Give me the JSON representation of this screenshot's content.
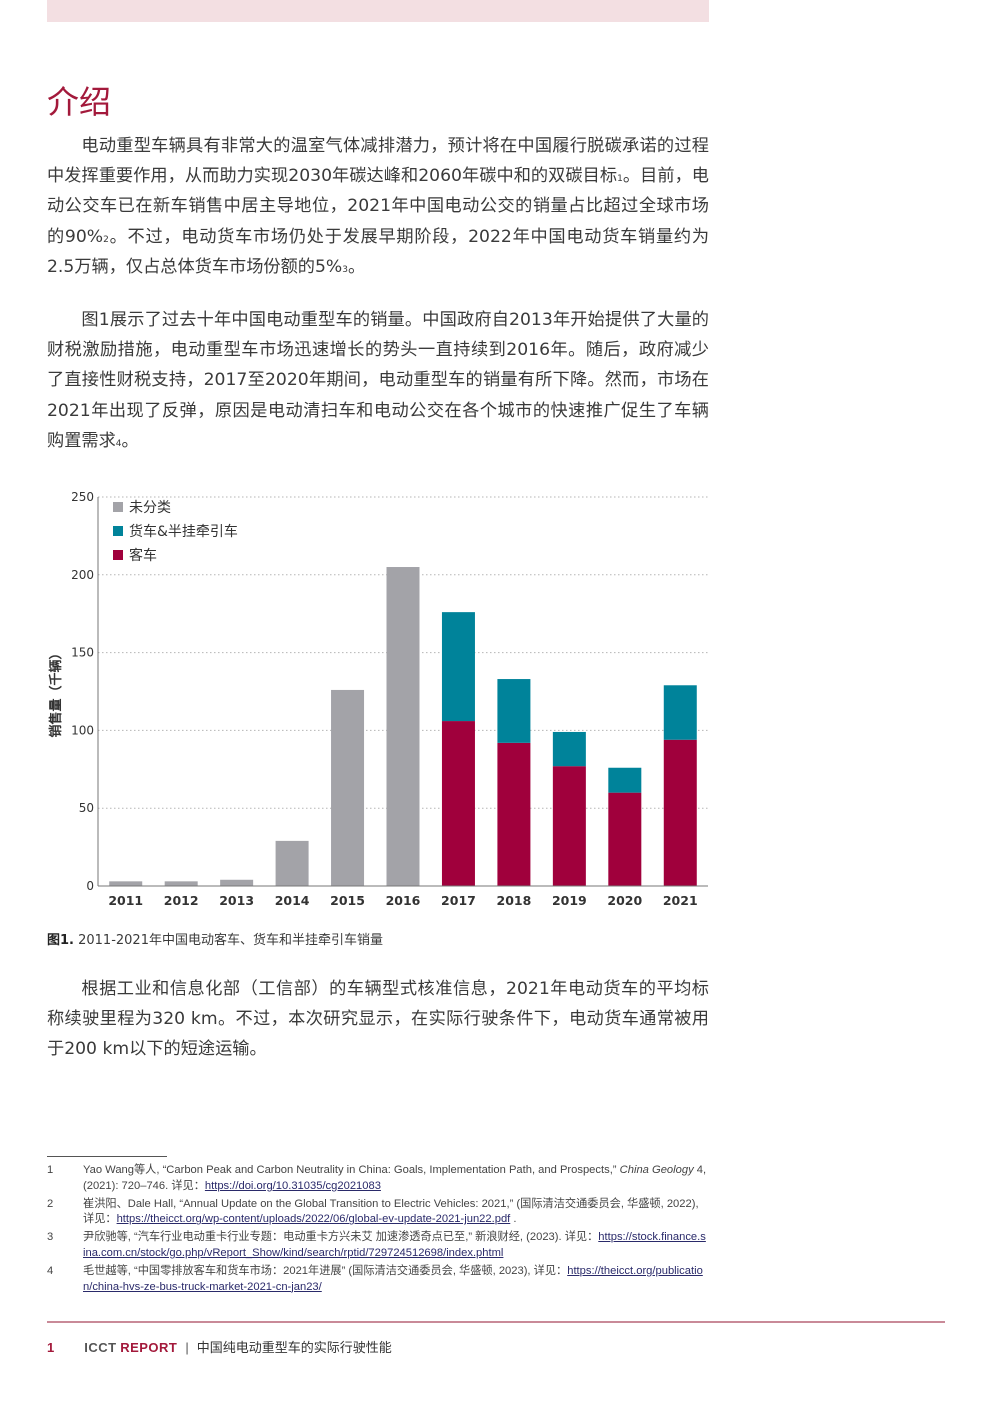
{
  "section_title": "介绍",
  "paragraphs": {
    "p1": {
      "a": "电动重型车辆具有非常大的温室气体减排潜力，预计将在中国履行脱碳承诺的过程中发挥重要作用，从而助力实现2030年碳达峰和2060年碳中和的双碳目标",
      "ref1": "1",
      "b": "。目前，电动公交车已在新车销售中居主导地位，2021年中国电动公交的销量占比超过全球市场的90%",
      "ref2": "2",
      "c": "。不过，电动货车市场仍处于发展早期阶段，2022年中国电动货车销量约为2.5万辆，仅占总体货车市场份额的5%",
      "ref3": "3",
      "d": "。"
    },
    "p2": {
      "a": "图1展示了过去十年中国电动重型车的销量。中国政府自2013年开始提供了大量的财税激励措施，电动重型车市场迅速增长的势头一直持续到2016年。随后，政府减少了直接性财税支持，2017至2020年期间，电动重型车的销量有所下降。然而，市场在2021年出现了反弹，原因是电动清扫车和电动公交在各个城市的快速推广促生了车辆购置需求",
      "ref4": "4",
      "b": "。"
    },
    "p3": "根据工业和信息化部（工信部）的车辆型式核准信息，2021年电动货车的平均标称续驶里程为320 km。不过，本次研究显示，在实际行驶条件下，电动货车通常被用于200 km以下的短途运输。"
  },
  "chart_data": {
    "type": "bar",
    "stacked": true,
    "categories": [
      "2011",
      "2012",
      "2013",
      "2014",
      "2015",
      "2016",
      "2017",
      "2018",
      "2019",
      "2020",
      "2021"
    ],
    "series": [
      {
        "name": "客车",
        "color": "#a0003c",
        "values": [
          0,
          0,
          0,
          0,
          0,
          0,
          106,
          92,
          77,
          60,
          94
        ]
      },
      {
        "name": "货车&半挂牵引车",
        "color": "#00839a",
        "values": [
          0,
          0,
          0,
          0,
          0,
          0,
          70,
          41,
          22,
          16,
          35
        ]
      },
      {
        "name": "未分类",
        "color": "#a3a3a8",
        "values": [
          3,
          3,
          4,
          29,
          126,
          205,
          0,
          0,
          0,
          0,
          0
        ]
      }
    ],
    "legend_order": [
      "未分类",
      "货车&半挂牵引车",
      "客车"
    ],
    "ylabel": "销售量（千辆）",
    "xlabel": "",
    "ylim": [
      0,
      250
    ],
    "yticks": [
      0,
      50,
      100,
      150,
      200,
      250
    ],
    "grid": "horizontal dotted",
    "legend_position": "top-left"
  },
  "caption": {
    "label": "图1.",
    "text": " 2011-2021年中国电动客车、货车和半挂牵引车销量"
  },
  "footnotes": [
    {
      "num": "1",
      "text": "Yao Wang等人, “Carbon Peak and Carbon Neutrality in China: Goals, Implementation Path, and Prospects,” ",
      "italic": "China Geology",
      "text2": " 4, (2021): 720–746. 详见：",
      "link": "https://doi.org/10.31035/cg2021083",
      "tail": ""
    },
    {
      "num": "2",
      "text": "崔洪阳、Dale Hall, “Annual Update on the Global Transition to Electric Vehicles: 2021,” (国际清洁交通委员会, 华盛顿, 2022), 详见：",
      "italic": "",
      "text2": "",
      "link": "https://theicct.org/wp-content/uploads/2022/06/global-ev-update-2021-jun22.pdf",
      "tail": " ."
    },
    {
      "num": "3",
      "text": "尹欣驰等, “汽车行业电动重卡行业专题：电动重卡方兴未艾 加速渗透奇点已至,” 新浪财经, (2023). 详见：",
      "italic": "",
      "text2": "",
      "link": "https://stock.finance.sina.com.cn/stock/go.php/vReport_Show/kind/search/rptid/729724512698/index.phtml",
      "tail": ""
    },
    {
      "num": "4",
      "text": "毛世越等, “中国零排放客车和货车市场：2021年进展” (国际清洁交通委员会, 华盛顿, 2023), 详见：",
      "italic": "",
      "text2": "",
      "link": "https://theicct.org/publication/china-hvs-ze-bus-truck-market-2021-cn-jan23/",
      "tail": ""
    }
  ],
  "footer": {
    "page_number": "1",
    "org": "ICCT",
    "report": "REPORT",
    "separator": "|",
    "title": "中国纯电动重型车的实际行驶性能"
  },
  "colors": {
    "accent": "#a3193b",
    "top_band": "#f3dfe2"
  }
}
